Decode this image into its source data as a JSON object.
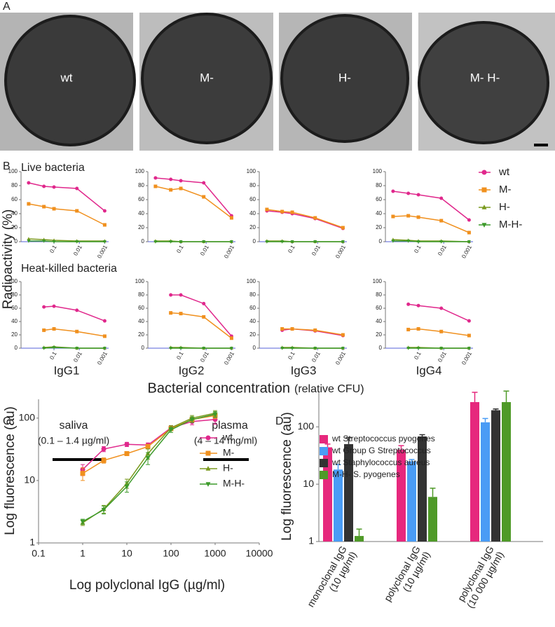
{
  "panel_labels": [
    "A",
    "B",
    "C",
    "D"
  ],
  "micrographs": [
    "wt",
    "M-",
    "H-",
    "M- H-"
  ],
  "panel_b": {
    "row_titles": [
      "Live bacteria",
      "Heat-killed bacteria"
    ],
    "columns": [
      "IgG1",
      "IgG2",
      "IgG3",
      "IgG4"
    ],
    "y_label": "Radioactivity (%)",
    "x_label": "Bacterial concentration",
    "x_label_note": "(relative CFU)",
    "series": [
      {
        "name": "wt",
        "color": "#e0288c",
        "marker": "circle"
      },
      {
        "name": "M-",
        "color": "#f0901e",
        "marker": "square"
      },
      {
        "name": "H-",
        "color": "#7a9a1e",
        "marker": "triangle-up"
      },
      {
        "name": "M-H-",
        "color": "#3c9a2a",
        "marker": "triangle-down"
      }
    ],
    "x": [
      1,
      0.25,
      0.1,
      0.0125,
      0.001
    ],
    "xlim": [
      2,
      0.0007
    ],
    "xticks": [
      0.1,
      0.01,
      0.001
    ],
    "log_x": true,
    "ylim": [
      0,
      100
    ],
    "yticks": [
      0,
      20,
      40,
      60,
      80,
      100
    ]
  },
  "chart_data": [
    {
      "type": "line",
      "series": [
        {
          "values": [
            84,
            79,
            78,
            76,
            44
          ]
        },
        {
          "values": [
            54,
            50,
            47,
            44,
            24
          ]
        },
        {
          "values": [
            4,
            3,
            2,
            1,
            1
          ]
        },
        {
          "values": [
            1,
            1,
            0,
            0,
            0
          ]
        }
      ]
    },
    {
      "type": "line",
      "series": [
        {
          "values": [
            91,
            89,
            87,
            84,
            37
          ]
        },
        {
          "values": [
            79,
            74,
            76,
            64,
            34
          ]
        },
        {
          "values": [
            1,
            1,
            0,
            0,
            0
          ]
        },
        {
          "values": [
            0,
            0,
            0,
            0,
            0
          ]
        }
      ]
    },
    {
      "type": "line",
      "series": [
        {
          "values": [
            44,
            42,
            40,
            33,
            19
          ]
        },
        {
          "values": [
            46,
            43,
            42,
            34,
            20
          ]
        },
        {
          "values": [
            1,
            1,
            0,
            0,
            0
          ]
        },
        {
          "values": [
            0,
            0,
            0,
            0,
            0
          ]
        }
      ]
    },
    {
      "type": "line",
      "series": [
        {
          "values": [
            72,
            69,
            67,
            62,
            31
          ]
        },
        {
          "values": [
            36,
            37,
            35,
            30,
            13
          ]
        },
        {
          "values": [
            3,
            2,
            1,
            1,
            0
          ]
        },
        {
          "values": [
            1,
            1,
            0,
            0,
            0
          ]
        }
      ]
    },
    {
      "type": "line",
      "series": [
        {
          "values": [
            null,
            62,
            63,
            57,
            41
          ]
        },
        {
          "values": [
            null,
            27,
            29,
            25,
            18
          ]
        },
        {
          "values": [
            null,
            1,
            2,
            0,
            0
          ]
        },
        {
          "values": [
            null,
            0,
            1,
            0,
            0
          ]
        }
      ]
    },
    {
      "type": "line",
      "series": [
        {
          "values": [
            null,
            80,
            80,
            67,
            18
          ]
        },
        {
          "values": [
            null,
            53,
            52,
            47,
            15
          ]
        },
        {
          "values": [
            null,
            1,
            1,
            0,
            0
          ]
        },
        {
          "values": [
            null,
            0,
            0,
            0,
            0
          ]
        }
      ]
    },
    {
      "type": "line",
      "series": [
        {
          "values": [
            null,
            27,
            29,
            26,
            19
          ]
        },
        {
          "values": [
            null,
            29,
            29,
            27,
            20
          ]
        },
        {
          "values": [
            null,
            1,
            1,
            0,
            0
          ]
        },
        {
          "values": [
            null,
            0,
            0,
            0,
            0
          ]
        }
      ]
    },
    {
      "type": "line",
      "series": [
        {
          "values": [
            null,
            66,
            64,
            60,
            41
          ]
        },
        {
          "values": [
            null,
            28,
            29,
            25,
            19
          ]
        },
        {
          "values": [
            null,
            1,
            1,
            0,
            0
          ]
        },
        {
          "values": [
            null,
            0,
            0,
            0,
            0
          ]
        }
      ]
    },
    {
      "type": "line",
      "x_label": "Log polyclonal IgG (µg/ml)",
      "y_label": "Log fluorescence (au)",
      "log_x": true,
      "log_y": true,
      "x": [
        1,
        3,
        10,
        30,
        100,
        300,
        1000
      ],
      "xlim": [
        0.1,
        10000
      ],
      "ylim": [
        1,
        200
      ],
      "xticks": [
        0.1,
        1,
        10,
        100,
        1000,
        10000
      ],
      "yticks": [
        1,
        10,
        100
      ],
      "annotations": [
        "saliva",
        "(0.1 – 1.4 µg/ml)",
        "plasma",
        "(4 – 14 mg/ml)"
      ],
      "series": [
        {
          "name": "wt",
          "color": "#e0288c",
          "marker": "circle",
          "values": [
            15,
            32,
            38,
            37,
            70,
            88,
            95
          ],
          "errors": [
            3,
            3,
            3,
            3,
            5,
            10,
            15
          ]
        },
        {
          "name": "M-",
          "color": "#f0901e",
          "marker": "square",
          "values": [
            13,
            21,
            27,
            35,
            68,
            95,
            110
          ],
          "errors": [
            3,
            2,
            2,
            3,
            5,
            8,
            12
          ]
        },
        {
          "name": "H-",
          "color": "#7a9a1e",
          "marker": "triangle-up",
          "values": [
            2.1,
            3.5,
            9,
            27,
            70,
            100,
            120
          ],
          "errors": [
            0.2,
            0.5,
            1.5,
            5,
            6,
            10,
            12
          ]
        },
        {
          "name": "M-H-",
          "color": "#3c9a2a",
          "marker": "triangle-down",
          "values": [
            2.2,
            3.4,
            8,
            23,
            65,
            95,
            115
          ],
          "errors": [
            0.2,
            0.5,
            1.5,
            5,
            6,
            10,
            12
          ]
        }
      ]
    },
    {
      "type": "bar",
      "y_label": "Log fluorescence (au)",
      "log_y": true,
      "ylim": [
        1,
        400
      ],
      "yticks": [
        1,
        10,
        100
      ],
      "categories": [
        [
          "monoclonal IgG",
          "(10 µg/ml)"
        ],
        [
          "polyclonal IgG",
          "(10 µg/ml)"
        ],
        [
          "polyclonal IgG",
          "(10 000 µg/ml)"
        ]
      ],
      "series": [
        {
          "name": "wt Streptococcus pyogenes",
          "color": "#e6287d",
          "values": [
            44,
            40,
            270
          ],
          "errors": [
            6,
            7,
            130
          ]
        },
        {
          "name": "wt Group G Streptococcus",
          "color": "#4a9cf5",
          "values": [
            18,
            25,
            120
          ],
          "errors": [
            4,
            2,
            20
          ]
        },
        {
          "name": "wt Staphylococcus aureus",
          "color": "#333333",
          "values": [
            50,
            68,
            195
          ],
          "errors": [
            15,
            5,
            10
          ]
        },
        {
          "name": "M-H- S. pyogenes",
          "color": "#4f9a28",
          "values": [
            1.25,
            6,
            270
          ],
          "errors": [
            0.4,
            2.5,
            150
          ]
        }
      ]
    }
  ]
}
